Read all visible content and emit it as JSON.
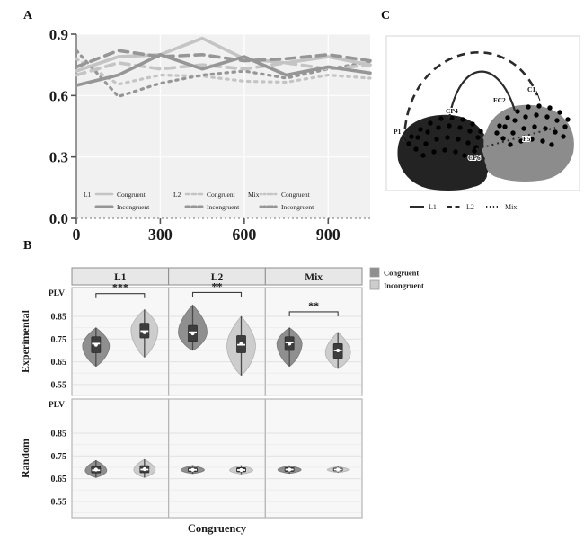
{
  "figure": {
    "panel_labels": {
      "a": "A",
      "b": "B",
      "c": "C"
    },
    "colors": {
      "light_series": "#c4c4c4",
      "dark_series": "#969696",
      "congruent_fill": "#8f8f8f",
      "incongruent_fill": "#cdcdcd",
      "box_fill": "#3d3d3d",
      "plot_bg": "#f1f1f1",
      "facet_bg": "#f7f7f7",
      "header_bg": "#e7e7e7",
      "head_dark": "#232323",
      "head_light": "#8c8c8c"
    }
  },
  "chart_data": [
    {
      "id": "panel-a-timecourse",
      "type": "line",
      "x": [
        0,
        150,
        300,
        450,
        600,
        750,
        900,
        1050
      ],
      "xticks": [
        0,
        300,
        600,
        900
      ],
      "yticks": [
        0.9,
        0.6,
        0.3,
        0.0
      ],
      "xlim": [
        0,
        1050
      ],
      "ylim": [
        0,
        0.9
      ],
      "series": [
        {
          "name": "L1 Congruent",
          "group": "L1",
          "congruency": "Congruent",
          "line": "solid",
          "shade": "light",
          "values": [
            0.72,
            0.79,
            0.8,
            0.88,
            0.78,
            0.76,
            0.79,
            0.75
          ]
        },
        {
          "name": "L1 Incongruent",
          "group": "L1",
          "congruency": "Incongruent",
          "line": "solid",
          "shade": "dark",
          "values": [
            0.65,
            0.7,
            0.8,
            0.73,
            0.79,
            0.7,
            0.74,
            0.71
          ]
        },
        {
          "name": "L2 Congruent",
          "group": "L2",
          "congruency": "Congruent",
          "line": "dashed",
          "shade": "light",
          "values": [
            0.7,
            0.76,
            0.73,
            0.75,
            0.73,
            0.76,
            0.73,
            0.75
          ]
        },
        {
          "name": "L2 Incongruent",
          "group": "L2",
          "congruency": "Incongruent",
          "line": "dashed",
          "shade": "dark",
          "values": [
            0.74,
            0.82,
            0.79,
            0.8,
            0.77,
            0.78,
            0.8,
            0.77
          ]
        },
        {
          "name": "Mix Congruent",
          "group": "Mix",
          "congruency": "Congruent",
          "line": "dotted",
          "shade": "light",
          "values": [
            0.78,
            0.655,
            0.7,
            0.695,
            0.67,
            0.665,
            0.7,
            0.685
          ]
        },
        {
          "name": "Mix Incongruent",
          "group": "Mix",
          "congruency": "Incongruent",
          "line": "dotted",
          "shade": "dark",
          "values": [
            0.82,
            0.595,
            0.66,
            0.7,
            0.72,
            0.685,
            0.73,
            0.765
          ]
        }
      ],
      "legend": {
        "groups": [
          {
            "label": "L1",
            "line": "solid"
          },
          {
            "label": "L2",
            "line": "dashed"
          },
          {
            "label": "Mix",
            "line": "dotted"
          }
        ],
        "congruent_label": "Congruent",
        "incongruent_label": "Incongruent"
      }
    },
    {
      "id": "panel-b-violins",
      "type": "violin",
      "facets": [
        "L1",
        "L2",
        "Mix"
      ],
      "xlabel": "Congruency",
      "legend": [
        {
          "label": "Congruent",
          "shade": "dark"
        },
        {
          "label": "Incongruent",
          "shade": "light"
        }
      ],
      "rows": [
        {
          "label": "Experimental",
          "axis_title": "PLV",
          "yticks": [
            0.85,
            0.75,
            0.65,
            0.55
          ],
          "cells": [
            {
              "facet": "L1",
              "sig": "***",
              "sig_v": 0.95,
              "violins": [
                {
                  "congruency": "Congruent",
                  "min": 0.63,
                  "max": 0.8,
                  "q1": 0.69,
                  "q3": 0.76,
                  "median": 0.73,
                  "mean": 0.725,
                  "peak": 0.72,
                  "hw": 15
                },
                {
                  "congruency": "Incongruent",
                  "min": 0.67,
                  "max": 0.88,
                  "q1": 0.755,
                  "q3": 0.82,
                  "median": 0.785,
                  "mean": 0.78,
                  "peak": 0.79,
                  "hw": 15
                }
              ]
            },
            {
              "facet": "L2",
              "sig": "**",
              "sig_v": 0.955,
              "violins": [
                {
                  "congruency": "Congruent",
                  "min": 0.7,
                  "max": 0.9,
                  "q1": 0.74,
                  "q3": 0.81,
                  "median": 0.78,
                  "mean": 0.775,
                  "peak": 0.78,
                  "hw": 16
                },
                {
                  "congruency": "Incongruent",
                  "min": 0.59,
                  "max": 0.85,
                  "q1": 0.69,
                  "q3": 0.765,
                  "median": 0.725,
                  "mean": 0.73,
                  "peak": 0.72,
                  "hw": 16
                }
              ]
            },
            {
              "facet": "Mix",
              "sig": "**",
              "sig_v": 0.87,
              "violins": [
                {
                  "congruency": "Congruent",
                  "min": 0.63,
                  "max": 0.8,
                  "q1": 0.7,
                  "q3": 0.76,
                  "median": 0.735,
                  "mean": 0.73,
                  "peak": 0.73,
                  "hw": 14
                },
                {
                  "congruency": "Incongruent",
                  "min": 0.62,
                  "max": 0.78,
                  "q1": 0.665,
                  "q3": 0.73,
                  "median": 0.7,
                  "mean": 0.7,
                  "peak": 0.69,
                  "hw": 14
                }
              ]
            }
          ]
        },
        {
          "label": "Random",
          "axis_title": "PLV",
          "yticks": [
            0.85,
            0.75,
            0.65,
            0.55
          ],
          "cells": [
            {
              "facet": "L1",
              "violins": [
                {
                  "congruency": "Congruent",
                  "min": 0.655,
                  "max": 0.73,
                  "q1": 0.675,
                  "q3": 0.703,
                  "median": 0.687,
                  "mean": 0.69,
                  "peak": 0.685,
                  "hw": 12
                },
                {
                  "congruency": "Incongruent",
                  "min": 0.655,
                  "max": 0.735,
                  "q1": 0.676,
                  "q3": 0.707,
                  "median": 0.69,
                  "mean": 0.692,
                  "peak": 0.688,
                  "hw": 12
                }
              ]
            },
            {
              "facet": "L2",
              "violins": [
                {
                  "congruency": "Congruent",
                  "min": 0.672,
                  "max": 0.708,
                  "q1": 0.681,
                  "q3": 0.697,
                  "median": 0.689,
                  "mean": 0.689,
                  "peak": 0.688,
                  "hw": 13
                },
                {
                  "congruency": "Incongruent",
                  "min": 0.67,
                  "max": 0.708,
                  "q1": 0.68,
                  "q3": 0.698,
                  "median": 0.688,
                  "mean": 0.688,
                  "peak": 0.687,
                  "hw": 13
                }
              ]
            },
            {
              "facet": "Mix",
              "violins": [
                {
                  "congruency": "Congruent",
                  "min": 0.673,
                  "max": 0.707,
                  "q1": 0.682,
                  "q3": 0.698,
                  "median": 0.69,
                  "mean": 0.69,
                  "peak": 0.689,
                  "hw": 13
                },
                {
                  "congruency": "Incongruent",
                  "min": 0.677,
                  "max": 0.703,
                  "q1": 0.684,
                  "q3": 0.696,
                  "median": 0.69,
                  "mean": 0.69,
                  "peak": 0.689,
                  "hw": 12
                }
              ]
            }
          ]
        }
      ]
    }
  ],
  "diagram": {
    "id": "panel-c-brains",
    "electrode_labels": [
      "P1",
      "CP4",
      "CP6",
      "FC2",
      "C1",
      "F5"
    ],
    "connections": [
      {
        "label": "L1",
        "style": "solid",
        "from": "CP4",
        "to": "FC2"
      },
      {
        "label": "L2",
        "style": "dashed",
        "from": "P1",
        "to": "C1"
      },
      {
        "label": "Mix",
        "style": "dotted",
        "from": "CP6",
        "to": "F5"
      }
    ],
    "legend": [
      {
        "label": "L1",
        "style": "solid"
      },
      {
        "label": "L2",
        "style": "dashed"
      },
      {
        "label": "Mix",
        "style": "dotted"
      }
    ]
  }
}
